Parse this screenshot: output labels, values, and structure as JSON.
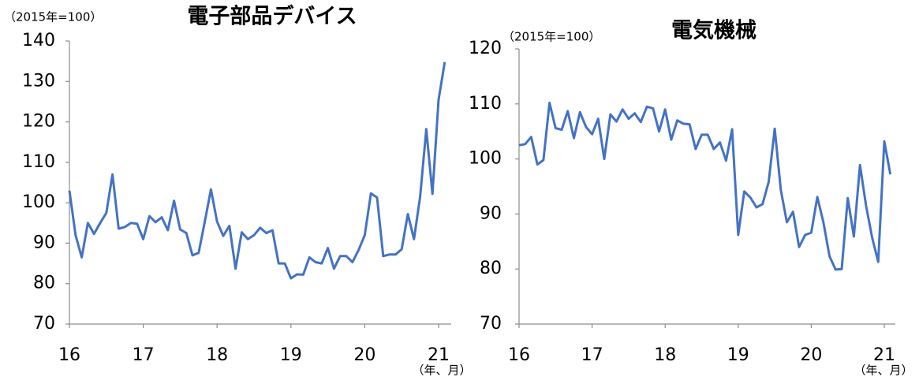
{
  "chart_data": [
    {
      "type": "line",
      "title": "電子部品デバイス",
      "unit_label": "（2015年=100）",
      "x_label": "（年、月）",
      "categories": [
        "16",
        null,
        null,
        null,
        null,
        null,
        null,
        null,
        null,
        null,
        null,
        null,
        "17",
        null,
        null,
        null,
        null,
        null,
        null,
        null,
        null,
        null,
        null,
        null,
        "18",
        null,
        null,
        null,
        null,
        null,
        null,
        null,
        null,
        null,
        null,
        null,
        "19",
        null,
        null,
        null,
        null,
        null,
        null,
        null,
        null,
        null,
        null,
        null,
        "20",
        null,
        null,
        null,
        null,
        null,
        null,
        null,
        null,
        null,
        null,
        null,
        "21",
        null
      ],
      "values": [
        103,
        92,
        86.5,
        95,
        92.3,
        95,
        97.5,
        107,
        93.6,
        94,
        95,
        94.8,
        91,
        96.7,
        95.2,
        96.4,
        93.2,
        100.5,
        93.4,
        92.5,
        87,
        87.6,
        95.3,
        103.3,
        95.3,
        91.8,
        94.3,
        83.7,
        92.7,
        91,
        92,
        93.8,
        92.5,
        93.2,
        85,
        85,
        81.3,
        82.3,
        82.2,
        86.5,
        85.3,
        85,
        88.8,
        83.7,
        86.8,
        86.8,
        85.3,
        88.3,
        92,
        102.3,
        101.3,
        86.8,
        87.2,
        87.2,
        88.5,
        97.2,
        91,
        101.5,
        118.2,
        102.2,
        125.5,
        134.8
      ],
      "color": "#4472c4",
      "ylim": [
        70,
        140
      ],
      "yticks": [
        70,
        80,
        90,
        100,
        110,
        120,
        130,
        140
      ]
    },
    {
      "type": "line",
      "title": "電気機械",
      "unit_label": "（2015年=100）",
      "x_label": "（年、月）",
      "categories": [
        "16",
        null,
        null,
        null,
        null,
        null,
        null,
        null,
        null,
        null,
        null,
        null,
        "17",
        null,
        null,
        null,
        null,
        null,
        null,
        null,
        null,
        null,
        null,
        null,
        "18",
        null,
        null,
        null,
        null,
        null,
        null,
        null,
        null,
        null,
        null,
        null,
        "19",
        null,
        null,
        null,
        null,
        null,
        null,
        null,
        null,
        null,
        null,
        null,
        "20",
        null,
        null,
        null,
        null,
        null,
        null,
        null,
        null,
        null,
        null,
        null,
        "21",
        null
      ],
      "values": [
        102.5,
        102.7,
        104,
        99,
        99.8,
        110.2,
        105.6,
        105.3,
        108.7,
        103.8,
        108.5,
        105.8,
        104.5,
        107.3,
        100,
        108.1,
        106.8,
        109,
        107.3,
        108.3,
        106.7,
        109.5,
        109.2,
        105,
        109,
        103.5,
        107,
        106.4,
        106.3,
        101.8,
        104.4,
        104.4,
        101.8,
        103,
        99.7,
        105.4,
        86.2,
        94.1,
        93,
        91.2,
        91.8,
        95.8,
        105.5,
        94.4,
        88.5,
        90.4,
        84,
        86.2,
        86.6,
        93.1,
        88.5,
        82.3,
        79.9,
        80,
        92.9,
        85.9,
        98.9,
        91.5,
        85.7,
        81.3,
        103.2,
        97.2
      ],
      "color": "#4472c4",
      "ylim": [
        70,
        120
      ],
      "yticks": [
        70,
        80,
        90,
        100,
        110,
        120
      ]
    }
  ]
}
